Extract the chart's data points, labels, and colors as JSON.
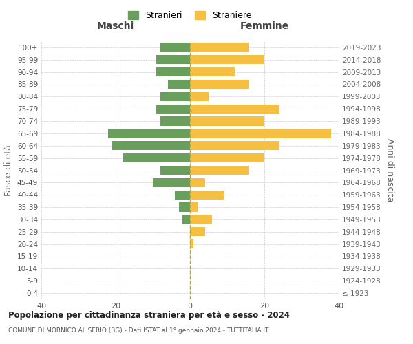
{
  "age_groups": [
    "0-4",
    "5-9",
    "10-14",
    "15-19",
    "20-24",
    "25-29",
    "30-34",
    "35-39",
    "40-44",
    "45-49",
    "50-54",
    "55-59",
    "60-64",
    "65-69",
    "70-74",
    "75-79",
    "80-84",
    "85-89",
    "90-94",
    "95-99",
    "100+"
  ],
  "birth_years": [
    "2019-2023",
    "2014-2018",
    "2009-2013",
    "2004-2008",
    "1999-2003",
    "1994-1998",
    "1989-1993",
    "1984-1988",
    "1979-1983",
    "1974-1978",
    "1969-1973",
    "1964-1968",
    "1959-1963",
    "1954-1958",
    "1949-1953",
    "1944-1948",
    "1939-1943",
    "1934-1938",
    "1929-1933",
    "1924-1928",
    "≤ 1923"
  ],
  "maschi": [
    8,
    9,
    9,
    6,
    8,
    9,
    8,
    22,
    21,
    18,
    8,
    10,
    4,
    3,
    2,
    0,
    0,
    0,
    0,
    0,
    0
  ],
  "femmine": [
    16,
    20,
    12,
    16,
    5,
    24,
    20,
    38,
    24,
    20,
    16,
    4,
    9,
    2,
    6,
    4,
    1,
    0,
    0,
    0,
    0
  ],
  "color_maschi": "#6a9e5c",
  "color_femmine": "#f5bf42",
  "title": "Popolazione per cittadinanza straniera per età e sesso - 2024",
  "subtitle": "COMUNE DI MORNICO AL SERIO (BG) - Dati ISTAT al 1° gennaio 2024 - TUTTITALIA.IT",
  "xlabel_left": "Maschi",
  "xlabel_right": "Femmine",
  "ylabel_left": "Fasce di età",
  "ylabel_right": "Anni di nascita",
  "legend_maschi": "Stranieri",
  "legend_femmine": "Straniere",
  "xlim": 40,
  "background_color": "#ffffff",
  "grid_color": "#cccccc"
}
